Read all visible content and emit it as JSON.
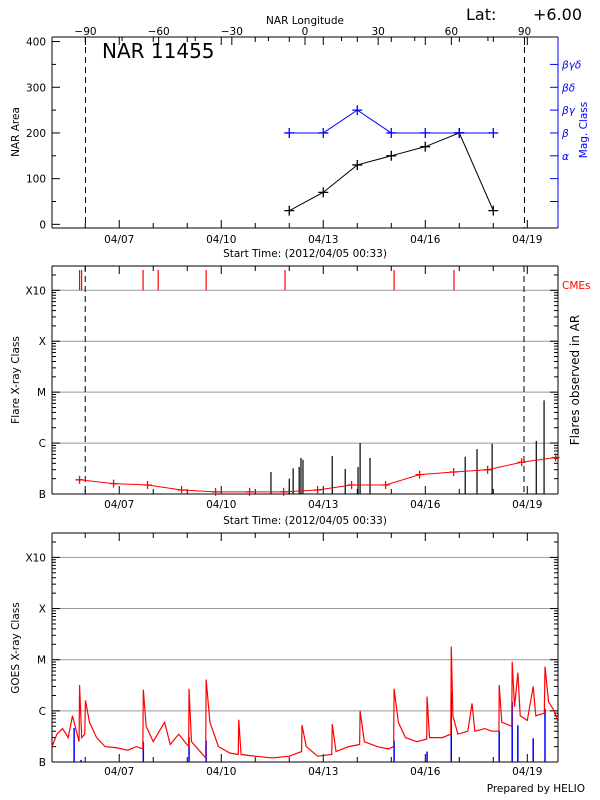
{
  "header": {
    "lat_label": "Lat:",
    "lat_value": "+6.00",
    "credit": "Prepared by HELIO"
  },
  "colors": {
    "axis": "#000000",
    "mag_class": "#0000ff",
    "cme": "#ff0000",
    "background_flux": "#ff0000",
    "goes_flux": "#ff0000",
    "goes_events": "#0000ff",
    "grid": "#999999"
  },
  "chart_data": [
    {
      "type": "line",
      "title": "NAR 11455",
      "ylabel": "NAR Area",
      "xlabel": "Start Time: (2012/04/05 00:33)",
      "top_axis_label": "NAR Longitude",
      "top_axis_ticks": [
        -90,
        -60,
        -30,
        0,
        30,
        60,
        90
      ],
      "right_axis_label": "Mag. Class",
      "right_axis_classes": [
        "α",
        "β",
        "βγ",
        "βδ",
        "βγδ"
      ],
      "xlim": [
        "2012-04-05T00:33",
        "2012-04-19T21:40"
      ],
      "x_tick_labels": [
        "04/07",
        "04/10",
        "04/13",
        "04/16",
        "04/19"
      ],
      "ylim": [
        -8,
        410
      ],
      "y_ticks": [
        0,
        100,
        200,
        300,
        400
      ],
      "limb_longitudes": [
        -90,
        90
      ],
      "x": [
        "2012-04-12T00:00",
        "2012-04-13T00:00",
        "2012-04-14T00:00",
        "2012-04-15T00:00",
        "2012-04-16T00:00",
        "2012-04-17T00:00",
        "2012-04-18T00:00"
      ],
      "series": [
        {
          "name": "NAR Area",
          "values": [
            30,
            70,
            130,
            150,
            170,
            200,
            30
          ]
        },
        {
          "name": "Mag. Class",
          "values": [
            "β",
            "β",
            "βγ",
            "β",
            "β",
            "β",
            "β"
          ]
        }
      ]
    },
    {
      "type": "line",
      "ylabel": "Flare X-ray Class",
      "right_axis_label": "Flares observed in AR",
      "xlabel": "Start Time: (2012/04/05 00:33)",
      "xlim": [
        "2012-04-05T00:33",
        "2012-04-19T21:40"
      ],
      "x_tick_labels": [
        "04/07",
        "04/10",
        "04/13",
        "04/16",
        "04/19"
      ],
      "y_scale": "log",
      "ylim": [
        1e-07,
        0.003
      ],
      "y_ticks": [
        {
          "label": "B",
          "value": 1e-07
        },
        {
          "label": "C",
          "value": 1e-06
        },
        {
          "label": "M",
          "value": 1e-05
        },
        {
          "label": "X",
          "value": 0.0001
        },
        {
          "label": "X10",
          "value": 0.001
        }
      ],
      "grid": true,
      "cme_label": "CMEs",
      "cmes": [
        "2012-04-05T20:00",
        "2012-04-05T21:25",
        "2012-04-07T16:50",
        "2012-04-08T03:30",
        "2012-04-09T13:20",
        "2012-04-11T21:00",
        "2012-04-15T02:00",
        "2012-04-16T20:15"
      ],
      "limb_crossings": [
        "2012-04-06T00:00",
        "2012-04-18T21:40"
      ],
      "background": {
        "x": [
          "2012-04-05T20:00",
          "2012-04-06T20:00",
          "2012-04-07T20:00",
          "2012-04-08T20:00",
          "2012-04-09T20:00",
          "2012-04-10T20:00",
          "2012-04-11T20:00",
          "2012-04-12T20:00",
          "2012-04-13T20:00",
          "2012-04-14T20:00",
          "2012-04-15T20:00",
          "2012-04-16T20:00",
          "2012-04-17T20:00",
          "2012-04-18T20:00",
          "2012-04-19T20:00"
        ],
        "values": [
          1.9e-07,
          1.6e-07,
          1.5e-07,
          1.2e-07,
          1.1e-07,
          1.1e-07,
          1.1e-07,
          1.2e-07,
          1.5e-07,
          1.5e-07,
          2.4e-07,
          2.7e-07,
          3e-07,
          4.2e-07,
          5.2e-07
        ]
      },
      "flares": [
        [
          "2012-04-11T11:05",
          2.7e-07
        ],
        [
          "2012-04-12T00:00",
          2e-07
        ],
        [
          "2012-04-12T02:45",
          3.2e-07
        ],
        [
          "2012-04-12T07:00",
          3.4e-07
        ],
        [
          "2012-04-12T08:15",
          5.1e-07
        ],
        [
          "2012-04-12T09:40",
          4.7e-07
        ],
        [
          "2012-04-13T06:20",
          5.6e-07
        ],
        [
          "2012-04-13T15:30",
          3.1e-07
        ],
        [
          "2012-04-14T00:33",
          3.4e-07
        ],
        [
          "2012-04-14T02:00",
          1e-06
        ],
        [
          "2012-04-14T09:00",
          5.1e-07
        ],
        [
          "2012-04-17T04:10",
          5.4e-07
        ],
        [
          "2012-04-17T12:30",
          7.6e-07
        ],
        [
          "2012-04-17T23:10",
          9.7e-07
        ],
        [
          "2012-04-19T06:20",
          1.1e-06
        ],
        [
          "2012-04-19T11:50",
          6.9e-06
        ]
      ]
    },
    {
      "type": "line",
      "ylabel": "GOES X-ray Class",
      "xlim": [
        "2012-04-05T00:33",
        "2012-04-19T21:40"
      ],
      "x_tick_labels": [
        "04/07",
        "04/10",
        "04/13",
        "04/16",
        "04/19"
      ],
      "y_scale": "log",
      "ylim": [
        1e-07,
        0.003
      ],
      "y_ticks": [
        {
          "label": "B",
          "value": 1e-07
        },
        {
          "label": "C",
          "value": 1e-06
        },
        {
          "label": "M",
          "value": 1e-05
        },
        {
          "label": "X",
          "value": 0.0001
        },
        {
          "label": "X10",
          "value": 0.001
        }
      ],
      "grid": true,
      "goes_flux": [
        [
          "2012-04-05T00:33",
          2e-07
        ],
        [
          "2012-04-05T04:00",
          3.5e-07
        ],
        [
          "2012-04-05T08:00",
          4.5e-07
        ],
        [
          "2012-04-05T12:00",
          3e-07
        ],
        [
          "2012-04-05T15:00",
          8e-07
        ],
        [
          "2012-04-05T19:40",
          2.5e-07
        ],
        [
          "2012-04-05T20:00",
          3.2e-06
        ],
        [
          "2012-04-05T21:30",
          3e-07
        ],
        [
          "2012-04-05T23:40",
          3.5e-07
        ],
        [
          "2012-04-06T00:10",
          1.6e-06
        ],
        [
          "2012-04-06T03:00",
          6e-07
        ],
        [
          "2012-04-06T08:00",
          3e-07
        ],
        [
          "2012-04-06T14:00",
          2e-07
        ],
        [
          "2012-04-06T22:00",
          1.9e-07
        ],
        [
          "2012-04-07T06:00",
          1.7e-07
        ],
        [
          "2012-04-07T12:00",
          2e-07
        ],
        [
          "2012-04-07T16:40",
          1.8e-07
        ],
        [
          "2012-04-07T17:00",
          2.6e-06
        ],
        [
          "2012-04-07T19:00",
          5e-07
        ],
        [
          "2012-04-08T00:00",
          2.5e-07
        ],
        [
          "2012-04-08T08:00",
          6e-07
        ],
        [
          "2012-04-08T12:00",
          2.2e-07
        ],
        [
          "2012-04-08T18:00",
          3.5e-07
        ],
        [
          "2012-04-09T01:00",
          2e-07
        ],
        [
          "2012-04-09T01:15",
          2.7e-06
        ],
        [
          "2012-04-09T03:00",
          2.5e-07
        ],
        [
          "2012-04-09T13:00",
          1.2e-07
        ],
        [
          "2012-04-09T13:20",
          4.1e-06
        ],
        [
          "2012-04-09T16:00",
          6e-07
        ],
        [
          "2012-04-09T22:00",
          2e-07
        ],
        [
          "2012-04-10T06:00",
          1.5e-07
        ],
        [
          "2012-04-10T12:00",
          1.4e-07
        ],
        [
          "2012-04-10T12:20",
          6.7e-07
        ],
        [
          "2012-04-10T14:00",
          1.4e-07
        ],
        [
          "2012-04-11T00:00",
          1.3e-07
        ],
        [
          "2012-04-11T12:00",
          1.2e-07
        ],
        [
          "2012-04-12T00:00",
          1.3e-07
        ],
        [
          "2012-04-12T08:40",
          1.6e-07
        ],
        [
          "2012-04-12T09:00",
          5.3e-07
        ],
        [
          "2012-04-12T12:00",
          2e-07
        ],
        [
          "2012-04-12T20:00",
          1.3e-07
        ],
        [
          "2012-04-13T06:00",
          1.4e-07
        ],
        [
          "2012-04-13T06:20",
          5.5e-07
        ],
        [
          "2012-04-13T09:00",
          1.6e-07
        ],
        [
          "2012-04-13T18:00",
          2e-07
        ],
        [
          "2012-04-14T01:40",
          2.2e-07
        ],
        [
          "2012-04-14T02:00",
          1e-06
        ],
        [
          "2012-04-14T05:00",
          2.5e-07
        ],
        [
          "2012-04-14T14:00",
          2e-07
        ],
        [
          "2012-04-14T22:00",
          1.8e-07
        ],
        [
          "2012-04-15T01:40",
          2e-07
        ],
        [
          "2012-04-15T02:00",
          2.7e-06
        ],
        [
          "2012-04-15T05:00",
          6e-07
        ],
        [
          "2012-04-15T10:00",
          3e-07
        ],
        [
          "2012-04-15T18:00",
          2.5e-07
        ],
        [
          "2012-04-16T01:00",
          2.8e-07
        ],
        [
          "2012-04-16T01:15",
          1.9e-06
        ],
        [
          "2012-04-16T03:00",
          3e-07
        ],
        [
          "2012-04-16T12:00",
          3e-07
        ],
        [
          "2012-04-16T18:00",
          3.5e-07
        ],
        [
          "2012-04-16T18:20",
          1.8e-05
        ],
        [
          "2012-04-16T19:30",
          8e-07
        ],
        [
          "2012-04-16T23:00",
          3.5e-07
        ],
        [
          "2012-04-17T06:00",
          4e-07
        ],
        [
          "2012-04-17T09:00",
          1.4e-06
        ],
        [
          "2012-04-17T11:00",
          4e-07
        ],
        [
          "2012-04-17T18:00",
          4.5e-07
        ],
        [
          "2012-04-17T23:00",
          4e-07
        ],
        [
          "2012-04-18T04:00",
          4e-07
        ],
        [
          "2012-04-18T04:10",
          3.2e-06
        ],
        [
          "2012-04-18T06:00",
          6e-07
        ],
        [
          "2012-04-18T13:00",
          5e-07
        ],
        [
          "2012-04-18T13:20",
          9.1e-06
        ],
        [
          "2012-04-18T15:00",
          1.2e-06
        ],
        [
          "2012-04-18T17:20",
          5.6e-06
        ],
        [
          "2012-04-18T19:00",
          8e-07
        ],
        [
          "2012-04-19T00:00",
          6.5e-07
        ],
        [
          "2012-04-19T04:10",
          3e-06
        ],
        [
          "2012-04-19T06:00",
          8e-07
        ],
        [
          "2012-04-19T12:00",
          9e-07
        ],
        [
          "2012-04-19T12:30",
          7.3e-06
        ],
        [
          "2012-04-19T15:00",
          1.5e-06
        ],
        [
          "2012-04-19T19:00",
          1e-06
        ],
        [
          "2012-04-19T21:40",
          6e-07
        ]
      ],
      "goes_events": [
        [
          "2012-04-05T16:10",
          4.6e-07
        ],
        [
          "2012-04-05T21:00",
          1.1e-07
        ],
        [
          "2012-04-07T17:00",
          2.5e-07
        ],
        [
          "2012-04-09T01:15",
          3.1e-07
        ],
        [
          "2012-04-09T13:20",
          2.6e-07
        ],
        [
          "2012-04-15T02:00",
          2.6e-07
        ],
        [
          "2012-04-16T01:15",
          1.6e-07
        ],
        [
          "2012-04-16T18:20",
          2.3e-06
        ],
        [
          "2012-04-18T04:10",
          4.1e-07
        ],
        [
          "2012-04-18T13:20",
          1.5e-06
        ],
        [
          "2012-04-18T17:20",
          5.2e-07
        ],
        [
          "2012-04-19T04:10",
          2.9e-07
        ],
        [
          "2012-04-19T12:30",
          1.1e-06
        ]
      ]
    }
  ]
}
